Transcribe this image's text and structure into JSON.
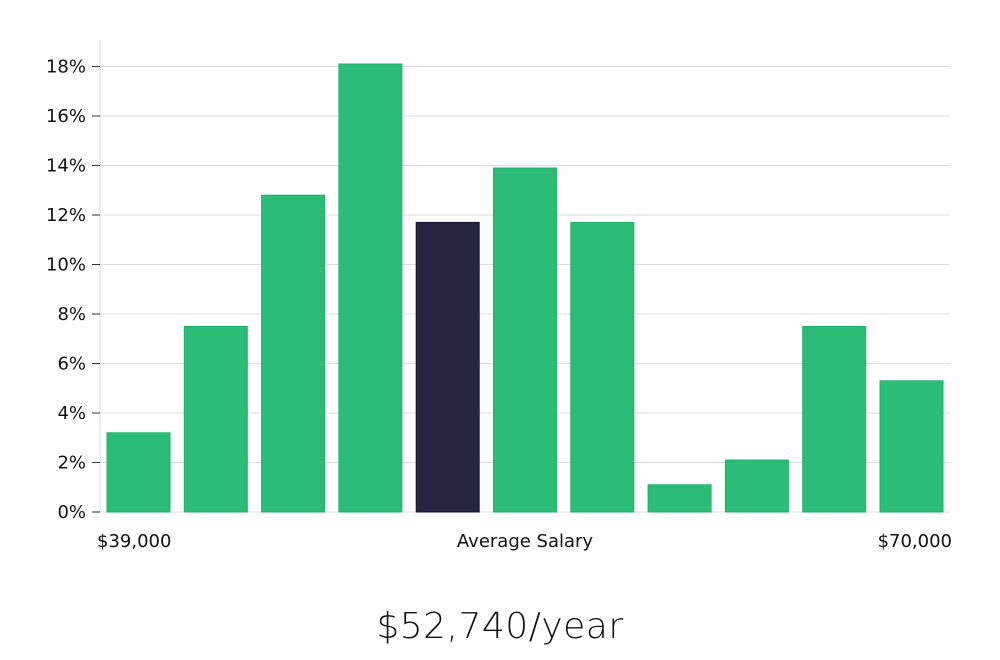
{
  "chart_data": {
    "type": "bar",
    "bars": [
      {
        "value": 3.2,
        "highlight": false
      },
      {
        "value": 7.5,
        "highlight": false
      },
      {
        "value": 12.8,
        "highlight": false
      },
      {
        "value": 18.1,
        "highlight": false
      },
      {
        "value": 11.7,
        "highlight": true
      },
      {
        "value": 13.9,
        "highlight": false
      },
      {
        "value": 11.7,
        "highlight": false
      },
      {
        "value": 1.1,
        "highlight": false
      },
      {
        "value": 2.1,
        "highlight": false
      },
      {
        "value": 7.5,
        "highlight": false
      },
      {
        "value": 5.3,
        "highlight": false
      }
    ],
    "ylim": [
      0,
      19
    ],
    "yticks": [
      "0%",
      "2%",
      "4%",
      "6%",
      "8%",
      "10%",
      "12%",
      "14%",
      "16%",
      "18%"
    ],
    "grid": true,
    "x_labels": {
      "left": "$39,000",
      "center": "Average Salary",
      "right": "$70,000"
    },
    "colors": {
      "bar": "#2bbd77",
      "highlight": "#262441",
      "grid": "#dddddd"
    }
  },
  "headline": "$52,740/year"
}
